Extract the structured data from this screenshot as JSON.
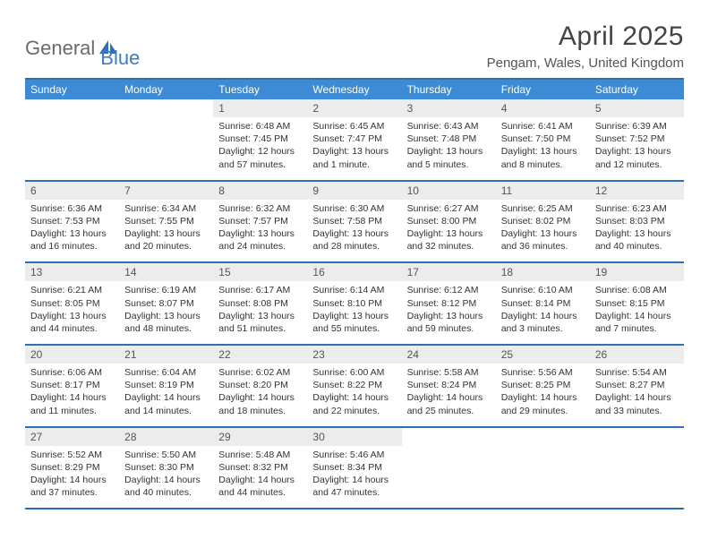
{
  "logo": {
    "part1": "General",
    "part2": "Blue"
  },
  "title": "April 2025",
  "location": "Pengam, Wales, United Kingdom",
  "colors": {
    "header_bg": "#3d8bd4",
    "header_text": "#ffffff",
    "border": "#2e6fb5",
    "daynum_bg": "#ececec",
    "logo_gray": "#6a6a6a",
    "logo_blue": "#3d7cc9"
  },
  "weekdays": [
    "Sunday",
    "Monday",
    "Tuesday",
    "Wednesday",
    "Thursday",
    "Friday",
    "Saturday"
  ],
  "weeks": [
    [
      null,
      null,
      {
        "n": "1",
        "sr": "Sunrise: 6:48 AM",
        "ss": "Sunset: 7:45 PM",
        "dl": "Daylight: 12 hours and 57 minutes."
      },
      {
        "n": "2",
        "sr": "Sunrise: 6:45 AM",
        "ss": "Sunset: 7:47 PM",
        "dl": "Daylight: 13 hours and 1 minute."
      },
      {
        "n": "3",
        "sr": "Sunrise: 6:43 AM",
        "ss": "Sunset: 7:48 PM",
        "dl": "Daylight: 13 hours and 5 minutes."
      },
      {
        "n": "4",
        "sr": "Sunrise: 6:41 AM",
        "ss": "Sunset: 7:50 PM",
        "dl": "Daylight: 13 hours and 8 minutes."
      },
      {
        "n": "5",
        "sr": "Sunrise: 6:39 AM",
        "ss": "Sunset: 7:52 PM",
        "dl": "Daylight: 13 hours and 12 minutes."
      }
    ],
    [
      {
        "n": "6",
        "sr": "Sunrise: 6:36 AM",
        "ss": "Sunset: 7:53 PM",
        "dl": "Daylight: 13 hours and 16 minutes."
      },
      {
        "n": "7",
        "sr": "Sunrise: 6:34 AM",
        "ss": "Sunset: 7:55 PM",
        "dl": "Daylight: 13 hours and 20 minutes."
      },
      {
        "n": "8",
        "sr": "Sunrise: 6:32 AM",
        "ss": "Sunset: 7:57 PM",
        "dl": "Daylight: 13 hours and 24 minutes."
      },
      {
        "n": "9",
        "sr": "Sunrise: 6:30 AM",
        "ss": "Sunset: 7:58 PM",
        "dl": "Daylight: 13 hours and 28 minutes."
      },
      {
        "n": "10",
        "sr": "Sunrise: 6:27 AM",
        "ss": "Sunset: 8:00 PM",
        "dl": "Daylight: 13 hours and 32 minutes."
      },
      {
        "n": "11",
        "sr": "Sunrise: 6:25 AM",
        "ss": "Sunset: 8:02 PM",
        "dl": "Daylight: 13 hours and 36 minutes."
      },
      {
        "n": "12",
        "sr": "Sunrise: 6:23 AM",
        "ss": "Sunset: 8:03 PM",
        "dl": "Daylight: 13 hours and 40 minutes."
      }
    ],
    [
      {
        "n": "13",
        "sr": "Sunrise: 6:21 AM",
        "ss": "Sunset: 8:05 PM",
        "dl": "Daylight: 13 hours and 44 minutes."
      },
      {
        "n": "14",
        "sr": "Sunrise: 6:19 AM",
        "ss": "Sunset: 8:07 PM",
        "dl": "Daylight: 13 hours and 48 minutes."
      },
      {
        "n": "15",
        "sr": "Sunrise: 6:17 AM",
        "ss": "Sunset: 8:08 PM",
        "dl": "Daylight: 13 hours and 51 minutes."
      },
      {
        "n": "16",
        "sr": "Sunrise: 6:14 AM",
        "ss": "Sunset: 8:10 PM",
        "dl": "Daylight: 13 hours and 55 minutes."
      },
      {
        "n": "17",
        "sr": "Sunrise: 6:12 AM",
        "ss": "Sunset: 8:12 PM",
        "dl": "Daylight: 13 hours and 59 minutes."
      },
      {
        "n": "18",
        "sr": "Sunrise: 6:10 AM",
        "ss": "Sunset: 8:14 PM",
        "dl": "Daylight: 14 hours and 3 minutes."
      },
      {
        "n": "19",
        "sr": "Sunrise: 6:08 AM",
        "ss": "Sunset: 8:15 PM",
        "dl": "Daylight: 14 hours and 7 minutes."
      }
    ],
    [
      {
        "n": "20",
        "sr": "Sunrise: 6:06 AM",
        "ss": "Sunset: 8:17 PM",
        "dl": "Daylight: 14 hours and 11 minutes."
      },
      {
        "n": "21",
        "sr": "Sunrise: 6:04 AM",
        "ss": "Sunset: 8:19 PM",
        "dl": "Daylight: 14 hours and 14 minutes."
      },
      {
        "n": "22",
        "sr": "Sunrise: 6:02 AM",
        "ss": "Sunset: 8:20 PM",
        "dl": "Daylight: 14 hours and 18 minutes."
      },
      {
        "n": "23",
        "sr": "Sunrise: 6:00 AM",
        "ss": "Sunset: 8:22 PM",
        "dl": "Daylight: 14 hours and 22 minutes."
      },
      {
        "n": "24",
        "sr": "Sunrise: 5:58 AM",
        "ss": "Sunset: 8:24 PM",
        "dl": "Daylight: 14 hours and 25 minutes."
      },
      {
        "n": "25",
        "sr": "Sunrise: 5:56 AM",
        "ss": "Sunset: 8:25 PM",
        "dl": "Daylight: 14 hours and 29 minutes."
      },
      {
        "n": "26",
        "sr": "Sunrise: 5:54 AM",
        "ss": "Sunset: 8:27 PM",
        "dl": "Daylight: 14 hours and 33 minutes."
      }
    ],
    [
      {
        "n": "27",
        "sr": "Sunrise: 5:52 AM",
        "ss": "Sunset: 8:29 PM",
        "dl": "Daylight: 14 hours and 37 minutes."
      },
      {
        "n": "28",
        "sr": "Sunrise: 5:50 AM",
        "ss": "Sunset: 8:30 PM",
        "dl": "Daylight: 14 hours and 40 minutes."
      },
      {
        "n": "29",
        "sr": "Sunrise: 5:48 AM",
        "ss": "Sunset: 8:32 PM",
        "dl": "Daylight: 14 hours and 44 minutes."
      },
      {
        "n": "30",
        "sr": "Sunrise: 5:46 AM",
        "ss": "Sunset: 8:34 PM",
        "dl": "Daylight: 14 hours and 47 minutes."
      },
      null,
      null,
      null
    ]
  ]
}
